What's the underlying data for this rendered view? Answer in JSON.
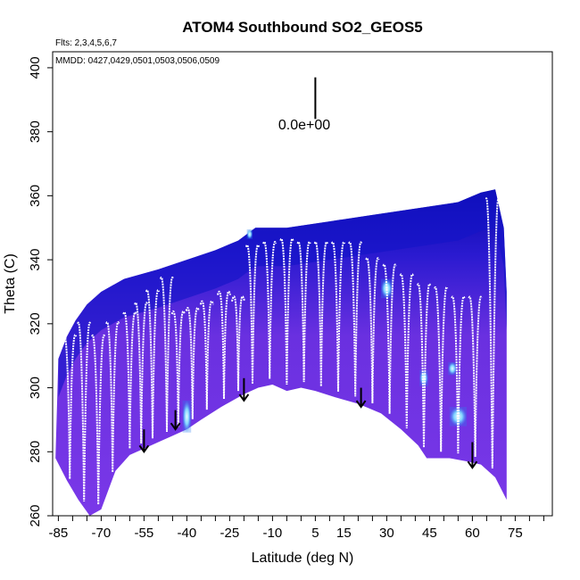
{
  "chart_data": {
    "type": "heatmap",
    "title": "ATOM4 Southbound SO2_GEOS5",
    "subtitle_flights": "Flts: 2,3,4,5,6,7",
    "subtitle_dates": "MMDD: 0427,0429,0501,0503,0506,0509",
    "xlabel": "Latitude (deg N)",
    "ylabel": "Theta (C)",
    "xlim": [
      -87,
      88
    ],
    "ylim": [
      260,
      405
    ],
    "xticks": [
      -85,
      -70,
      -55,
      -40,
      -25,
      -10,
      5,
      15,
      30,
      45,
      60,
      75
    ],
    "xtick_labels": [
      "-85",
      "-70",
      "-55",
      "-40",
      "-25",
      "-10",
      "5",
      "15",
      "30",
      "45",
      "60",
      "75"
    ],
    "yticks": [
      260,
      280,
      300,
      320,
      340,
      360,
      380,
      400
    ],
    "ytick_labels": [
      "260",
      "280",
      "300",
      "320",
      "340",
      "360",
      "380",
      "400"
    ],
    "scale_label": "0.0e+00",
    "scale_bar_x": 5,
    "scale_bar_y": [
      384,
      397
    ],
    "colors": {
      "background_field": "#7a38e8",
      "upper_field": "#1414c8",
      "top_field": "#0808a8",
      "enhanced": "#2a8cf0",
      "hot": "#ccf4ff",
      "track": "#ffffff",
      "arrow": "#000000"
    },
    "domain_top": [
      [
        -85,
        309
      ],
      [
        -82,
        316
      ],
      [
        -79,
        321
      ],
      [
        -75,
        326
      ],
      [
        -70,
        330
      ],
      [
        -62,
        334
      ],
      [
        -50,
        337
      ],
      [
        -40,
        340
      ],
      [
        -30,
        343
      ],
      [
        -22,
        346
      ],
      [
        -16,
        350
      ],
      [
        -5,
        350
      ],
      [
        10,
        352
      ],
      [
        25,
        354
      ],
      [
        40,
        356
      ],
      [
        55,
        358
      ],
      [
        63,
        361
      ],
      [
        68,
        362
      ],
      [
        71,
        350
      ],
      [
        72,
        330
      ]
    ],
    "domain_bottom": [
      [
        -86,
        278
      ],
      [
        -82,
        271
      ],
      [
        -78,
        265
      ],
      [
        -74,
        260
      ],
      [
        -70,
        262
      ],
      [
        -65,
        274
      ],
      [
        -60,
        279
      ],
      [
        -55,
        281
      ],
      [
        -50,
        283
      ],
      [
        -45,
        285
      ],
      [
        -40,
        287
      ],
      [
        -35,
        290
      ],
      [
        -28,
        294
      ],
      [
        -20,
        298
      ],
      [
        -15,
        300
      ],
      [
        -10,
        301
      ],
      [
        -5,
        299
      ],
      [
        0,
        300
      ],
      [
        5,
        299
      ],
      [
        12,
        297
      ],
      [
        20,
        295
      ],
      [
        28,
        292
      ],
      [
        35,
        287
      ],
      [
        41,
        282
      ],
      [
        44,
        278
      ],
      [
        52,
        278
      ],
      [
        58,
        277
      ],
      [
        63,
        276
      ],
      [
        68,
        272
      ],
      [
        72,
        265
      ]
    ],
    "hotspots": [
      {
        "x": 55,
        "y": 291,
        "w": 6,
        "h": 6
      },
      {
        "x": -40,
        "y": 291,
        "w": 3,
        "h": 10
      },
      {
        "x": 43,
        "y": 303,
        "w": 3,
        "h": 5
      },
      {
        "x": 53,
        "y": 306,
        "w": 3,
        "h": 4
      },
      {
        "x": 30,
        "y": 331,
        "w": 4,
        "h": 6
      },
      {
        "x": -18,
        "y": 348,
        "w": 2,
        "h": 3
      }
    ],
    "profiles": [
      {
        "x": -81,
        "top": 318
      },
      {
        "x": -76,
        "top": 322
      },
      {
        "x": -71,
        "top": 318
      },
      {
        "x": -66,
        "top": 322
      },
      {
        "x": -60,
        "top": 325
      },
      {
        "x": -56,
        "top": 328
      },
      {
        "x": -52,
        "top": 332
      },
      {
        "x": -47,
        "top": 336
      },
      {
        "x": -43,
        "top": 325
      },
      {
        "x": -38,
        "top": 326
      },
      {
        "x": -33,
        "top": 328
      },
      {
        "x": -27,
        "top": 331
      },
      {
        "x": -22,
        "top": 329
      },
      {
        "x": -17,
        "top": 346
      },
      {
        "x": -11,
        "top": 347
      },
      {
        "x": -5,
        "top": 348
      },
      {
        "x": 1,
        "top": 347
      },
      {
        "x": 7,
        "top": 347
      },
      {
        "x": 13,
        "top": 347
      },
      {
        "x": 19,
        "top": 347
      },
      {
        "x": 25,
        "top": 342
      },
      {
        "x": 31,
        "top": 340
      },
      {
        "x": 37,
        "top": 337
      },
      {
        "x": 43,
        "top": 334
      },
      {
        "x": 49,
        "top": 333
      },
      {
        "x": 55,
        "top": 330
      },
      {
        "x": 61,
        "top": 330
      },
      {
        "x": 67,
        "top": 361
      }
    ],
    "arrows": [
      {
        "x": -55,
        "y_top": 287,
        "y_bottom": 280
      },
      {
        "x": -44,
        "y_top": 293,
        "y_bottom": 287
      },
      {
        "x": -20,
        "y_top": 303,
        "y_bottom": 296
      },
      {
        "x": 21,
        "y_top": 300,
        "y_bottom": 294
      },
      {
        "x": 60,
        "y_top": 283,
        "y_bottom": 275
      }
    ]
  }
}
